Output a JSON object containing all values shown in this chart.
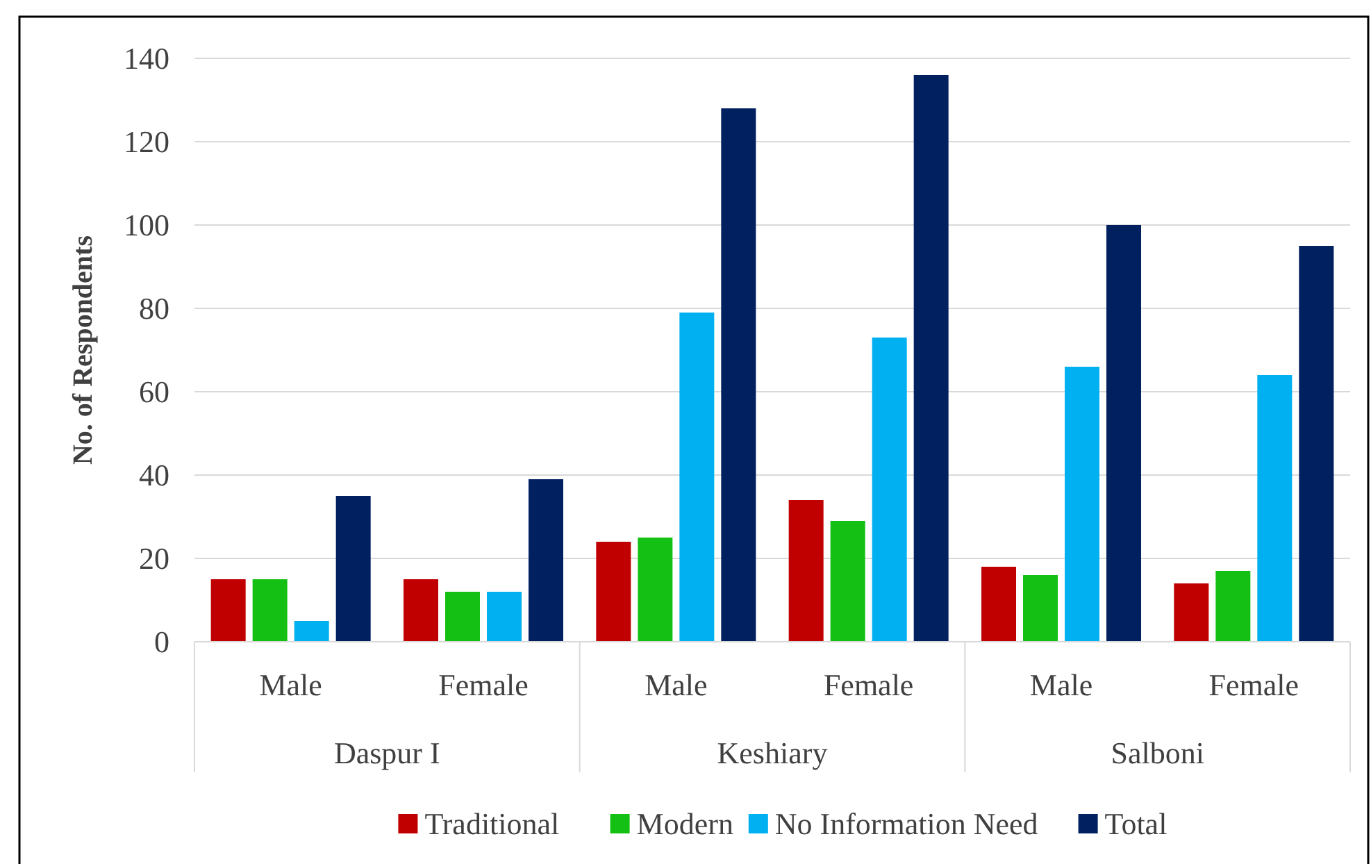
{
  "chart_data": {
    "type": "bar",
    "ylabel": "No. of Respondents",
    "categories": [
      "Male",
      "Female",
      "Male",
      "Female",
      "Male",
      "Female"
    ],
    "annotations": [
      "Daspur I",
      "Keshiary",
      "Salboni"
    ],
    "series": [
      {
        "name": "Traditional",
        "color": "#c00000",
        "values": [
          15,
          15,
          24,
          34,
          18,
          14
        ]
      },
      {
        "name": "Modern",
        "color": "#14c014",
        "values": [
          15,
          12,
          25,
          29,
          16,
          17
        ]
      },
      {
        "name": "No Information Need",
        "color": "#00b0f0",
        "values": [
          5,
          12,
          79,
          73,
          66,
          64
        ]
      },
      {
        "name": "Total",
        "color": "#002060",
        "values": [
          35,
          39,
          128,
          136,
          100,
          95
        ]
      }
    ],
    "ylim": [
      0,
      140
    ],
    "yticks": [
      0,
      20,
      40,
      60,
      80,
      100,
      120,
      140
    ],
    "grid": "y",
    "legend": "bottom"
  }
}
